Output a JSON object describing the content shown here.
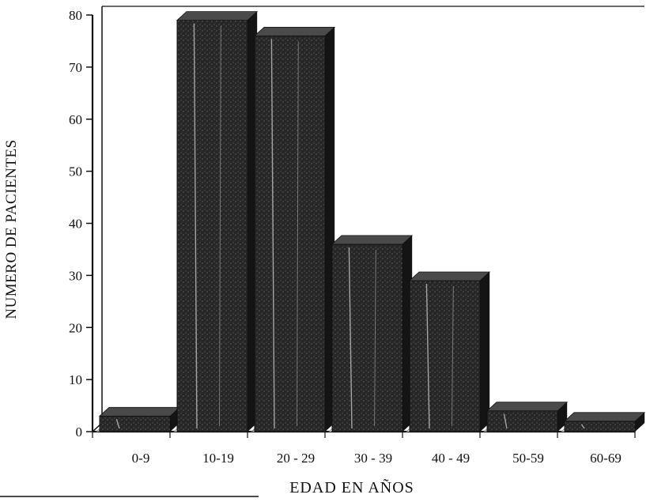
{
  "chart_data": {
    "type": "bar",
    "title": "",
    "xlabel": "EDAD EN AÑOS",
    "ylabel": "NUMERO DE PACIENTES",
    "categories": [
      "0-9",
      "10-19",
      "20 - 29",
      "30 - 39",
      "40 - 49",
      "50-59",
      "60-69"
    ],
    "values": [
      3,
      79,
      76,
      36,
      29,
      4,
      2
    ],
    "ylim": [
      0,
      80
    ],
    "y_ticks": [
      "0",
      "10",
      "20",
      "30",
      "40",
      "50",
      "60",
      "70",
      "80"
    ],
    "grid": false,
    "legend": "none",
    "bar_style": "3d",
    "colors": {
      "bar_front": "#262626",
      "bar_top": "#4a4a4a",
      "bar_side": "#141414",
      "axis": "#111111",
      "text": "#111111"
    }
  }
}
